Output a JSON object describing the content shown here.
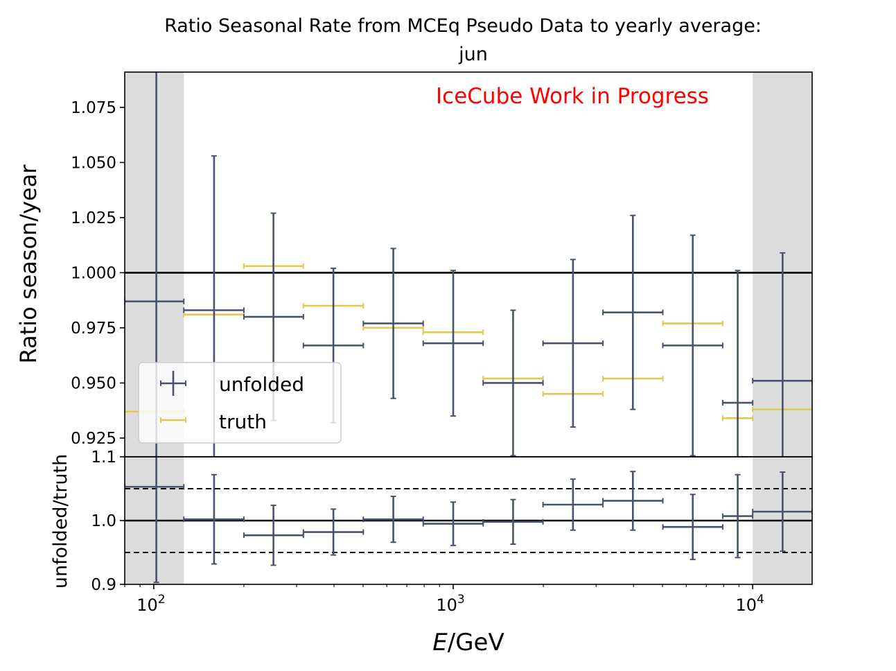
{
  "title_line1": "Ratio Seasonal Rate from MCEq Pseudo Data to yearly average:",
  "title_line2": "jun",
  "watermark": "IceCube Work in Progress",
  "colors": {
    "unfolded": "#48526b",
    "truth": "#e0c94f",
    "shade": "#dcdcdc",
    "watermark": "#ff0000"
  },
  "legend": {
    "unfolded": "unfolded",
    "truth": "truth",
    "placement": "lower-left"
  },
  "chart_data": [
    {
      "type": "scatter",
      "panel": "top",
      "xscale": "log",
      "xlim": [
        80,
        15800
      ],
      "ylim": [
        0.9165,
        1.091
      ],
      "ylabel": "Ratio season/year",
      "yticks": [
        "0.925",
        "0.950",
        "0.975",
        "1.000",
        "1.025",
        "1.050",
        "1.075"
      ],
      "reference_line": 1.0,
      "shaded_x_ranges": [
        [
          80,
          126
        ],
        [
          10000,
          15800
        ]
      ],
      "bin_edges": [
        80,
        126,
        200,
        316,
        501,
        794,
        1259,
        1995,
        3162,
        5012,
        7943,
        10000,
        15800
      ],
      "series": [
        {
          "name": "unfolded",
          "x": [
            102,
            159,
            251,
            398,
            631,
            1000,
            1585,
            2512,
            3981,
            6310,
            8913,
            12590
          ],
          "y": [
            0.987,
            0.983,
            0.98,
            0.967,
            0.977,
            0.968,
            0.95,
            0.968,
            0.982,
            0.967,
            0.941,
            0.951
          ],
          "yerr": [
            0.11,
            0.07,
            0.047,
            0.035,
            0.034,
            0.033,
            0.033,
            0.038,
            0.044,
            0.05,
            0.06,
            0.058
          ]
        },
        {
          "name": "truth",
          "x": [
            102,
            159,
            251,
            398,
            631,
            1000,
            1585,
            2512,
            3981,
            6310,
            8913,
            12590
          ],
          "y": [
            0.937,
            0.981,
            1.003,
            0.985,
            0.975,
            0.973,
            0.952,
            0.945,
            0.952,
            0.977,
            0.934,
            0.938
          ]
        }
      ]
    },
    {
      "type": "scatter",
      "panel": "bottom",
      "xscale": "log",
      "xlim": [
        80,
        15800
      ],
      "ylim": [
        0.9,
        1.1
      ],
      "xlabel": "E/GeV",
      "ylabel": "unfolded/truth",
      "yticks": [
        "0.9",
        "1.0",
        "1.1"
      ],
      "xticks": [
        100,
        1000,
        10000
      ],
      "reference_line": 1.0,
      "dashed_lines": [
        0.95,
        1.05
      ],
      "series": [
        {
          "name": "unfolded/truth",
          "x": [
            102,
            159,
            251,
            398,
            631,
            1000,
            1585,
            2512,
            3981,
            6310,
            8913,
            12590
          ],
          "y": [
            1.053,
            1.002,
            0.977,
            0.982,
            1.002,
            0.995,
            0.998,
            1.025,
            1.031,
            0.99,
            1.007,
            1.014
          ],
          "yerr": [
            0.15,
            0.07,
            0.047,
            0.036,
            0.036,
            0.034,
            0.035,
            0.04,
            0.046,
            0.051,
            0.065,
            0.062
          ]
        }
      ]
    }
  ]
}
